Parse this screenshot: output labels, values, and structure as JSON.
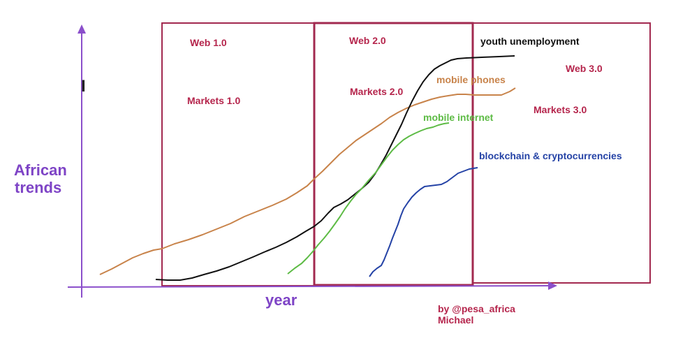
{
  "eras": [
    {
      "web": "Web 1.0",
      "markets": "Markets 1.0"
    },
    {
      "web": "Web 2.0",
      "markets": "Markets 2.0"
    },
    {
      "web": "Web 3.0",
      "markets": "Markets 3.0"
    }
  ],
  "axes": {
    "y_label_line1": "African",
    "y_label_line2": "trends",
    "x_label": "year",
    "stray_mark": "I"
  },
  "series": [
    {
      "key": "youth_unemployment",
      "name": "youth unemployment",
      "color": "#111111"
    },
    {
      "key": "mobile_phones",
      "name": "mobile phones",
      "color": "#C8834A"
    },
    {
      "key": "mobile_internet",
      "name": "mobile internet",
      "color": "#5DBB45"
    },
    {
      "key": "blockchain",
      "name": "blockchain & cryptocurrencies",
      "color": "#2543A6"
    }
  ],
  "credit": {
    "line1": "by @pesa_africa",
    "line2": "Michael"
  },
  "colors": {
    "frame": "#A2294F",
    "label": "#B5254C",
    "axis": "#8B4FCB",
    "axis_label": "#7E44C6"
  }
}
